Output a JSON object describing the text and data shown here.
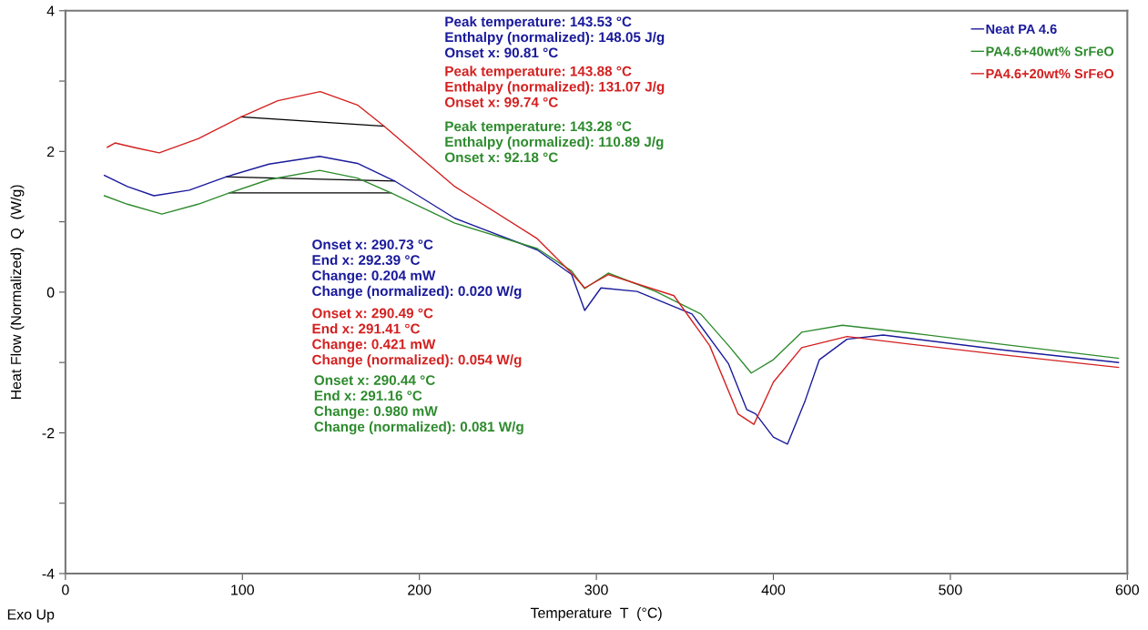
{
  "chart_data": {
    "type": "line",
    "xlabel": "Temperature  T  (°C)",
    "ylabel": "Heat Flow (Normalized)  Q  (W/g)",
    "xlim": [
      0,
      600
    ],
    "xticks": [
      0,
      100,
      200,
      300,
      400,
      500,
      600
    ],
    "ylim": [
      -4,
      4
    ],
    "yticks": [
      -4,
      {
        "value": -3,
        "label": null
      },
      -2,
      {
        "value": -1,
        "label": null
      },
      0,
      {
        "value": 1,
        "label": null
      },
      2,
      {
        "value": 3,
        "label": null
      },
      4
    ],
    "grid": false,
    "legend": "top right",
    "marker": "none",
    "line_style": "solid",
    "series": [
      {
        "name": "Neat PA 4.6",
        "color": "#1a1a9c",
        "x": [
          22,
          35,
          50,
          70,
          91,
          115,
          143.6,
          165,
          186,
          220,
          266.6,
          286,
          293.4,
          302.6,
          323,
          354,
          374.7,
          385,
          390,
          400,
          408,
          418,
          426,
          441.6,
          462,
          529,
          595
        ],
        "values": [
          1.66,
          1.5,
          1.37,
          1.45,
          1.64,
          1.82,
          1.93,
          1.83,
          1.58,
          1.05,
          0.6,
          0.25,
          -0.26,
          0.06,
          0.01,
          -0.31,
          -1.02,
          -1.67,
          -1.73,
          -2.06,
          -2.16,
          -1.54,
          -0.96,
          -0.67,
          -0.61,
          -0.82,
          -1.0
        ]
      },
      {
        "name": "PA4.6+40wt% SrFeO",
        "color": "#2e8b2e",
        "x": [
          22,
          35,
          54.5,
          75,
          92.6,
          115,
          143.6,
          165,
          184,
          220,
          266.6,
          286,
          293.4,
          306.7,
          333.5,
          359,
          374.7,
          387.5,
          400,
          416,
          439,
          477.6,
          529,
          595
        ],
        "values": [
          1.37,
          1.25,
          1.11,
          1.25,
          1.41,
          1.6,
          1.73,
          1.62,
          1.41,
          0.98,
          0.62,
          0.3,
          0.05,
          0.27,
          0.01,
          -0.31,
          -0.76,
          -1.15,
          -0.96,
          -0.57,
          -0.47,
          -0.58,
          -0.74,
          -0.94
        ]
      },
      {
        "name": "PA4.6+20wt% SrFeO",
        "color": "#d42020",
        "x": [
          23.7,
          28,
          40,
          53,
          75,
          99.3,
          120,
          144,
          165,
          180,
          220,
          266.6,
          286,
          293.4,
          306.7,
          343.8,
          364,
          380,
          389,
          400,
          416,
          441.6,
          477.6,
          529,
          595
        ],
        "values": [
          2.06,
          2.12,
          2.05,
          1.98,
          2.18,
          2.49,
          2.72,
          2.85,
          2.66,
          2.36,
          1.5,
          0.76,
          0.27,
          0.06,
          0.25,
          -0.05,
          -0.76,
          -1.73,
          -1.88,
          -1.28,
          -0.79,
          -0.63,
          -0.74,
          -0.89,
          -1.07
        ]
      },
      {
        "color": "#000000",
        "x": [
          91,
          186
        ],
        "values": [
          1.64,
          1.58
        ]
      },
      {
        "color": "#000000",
        "x": [
          92.6,
          184
        ],
        "values": [
          1.41,
          1.41
        ]
      },
      {
        "color": "#000000",
        "x": [
          99.3,
          180
        ],
        "values": [
          2.49,
          2.36
        ]
      }
    ],
    "annotations": [
      "Peak temperature: 143.53 °C\nEnthalpy (normalized): 148.05 J/g\nOnset x: 90.81 °C",
      "Peak temperature: 143.88 °C\nEnthalpy (normalized): 131.07 J/g\nOnset x: 99.74 °C",
      "Peak temperature: 143.28 °C\nEnthalpy (normalized): 110.89 J/g\nOnset x: 92.18 °C",
      "Onset x: 290.73 °C\nEnd x: 292.39 °C\nChange: 0.204 mW\nChange (normalized): 0.020 W/g",
      "Onset x: 290.49 °C\nEnd x: 291.41 °C\nChange: 0.421 mW\nChange (normalized): 0.054 W/g",
      "Onset x: 290.44 °C\nEnd x: 291.16 °C\nChange: 0.980 mW\nChange (normalized): 0.081 W/g",
      "Exo Up"
    ]
  }
}
